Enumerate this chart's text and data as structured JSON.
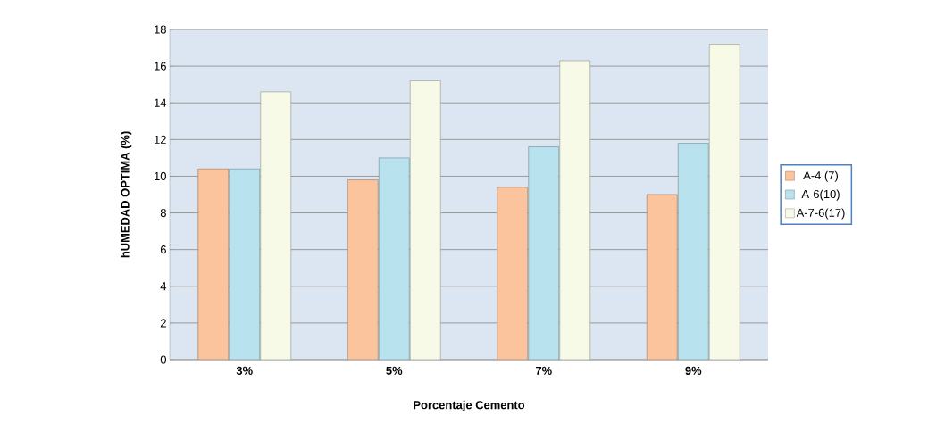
{
  "chart_data": {
    "type": "bar",
    "xlabel": "Porcentaje Cemento",
    "ylabel": "hUMEDAD OPTIMA (%)",
    "categories": [
      "3%",
      "5%",
      "7%",
      "9%"
    ],
    "series": [
      {
        "name": "A-4 (7)",
        "color": "#fbc49c",
        "values": [
          10.4,
          9.8,
          9.4,
          9.0
        ]
      },
      {
        "name": "A-6(10)",
        "color": "#b7e2ee",
        "values": [
          10.4,
          11.0,
          11.6,
          11.8
        ]
      },
      {
        "name": "A-7-6(17)",
        "color": "#f6fae6",
        "values": [
          14.6,
          15.2,
          16.3,
          17.2
        ]
      }
    ],
    "ylim": [
      0,
      18
    ],
    "yticks": [
      0,
      2,
      4,
      6,
      8,
      10,
      12,
      14,
      16,
      18
    ],
    "grid": "y",
    "legend": "right"
  }
}
